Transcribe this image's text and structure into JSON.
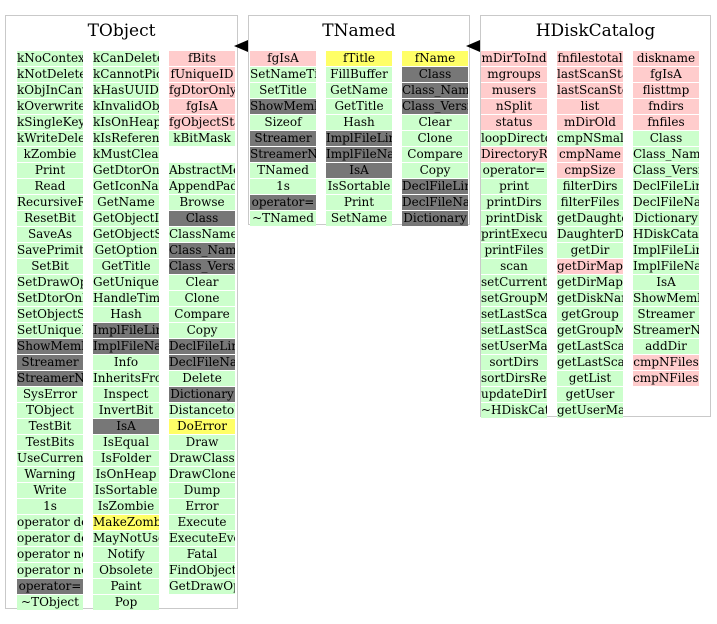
{
  "colors": {
    "method": "#ccffcc",
    "data_member": "#ffcccc",
    "highlight": "#ffff66",
    "overridden": "#777777",
    "border": "#c9c9c9"
  },
  "classes": [
    {
      "name": "TObject",
      "columns": [
        [
          {
            "t": "kNoContextMenu",
            "s": "m"
          },
          {
            "t": "kNotDeleted",
            "s": "m"
          },
          {
            "t": "kObjInCanvas",
            "s": "m"
          },
          {
            "t": "kOverwrite",
            "s": "m"
          },
          {
            "t": "kSingleKey",
            "s": "m"
          },
          {
            "t": "kWriteDelete",
            "s": "m"
          },
          {
            "t": "kZombie",
            "s": "m"
          },
          {
            "t": "Print",
            "s": "m"
          },
          {
            "t": "Read",
            "s": "m"
          },
          {
            "t": "RecursiveRemove",
            "s": "m"
          },
          {
            "t": "ResetBit",
            "s": "m"
          },
          {
            "t": "SaveAs",
            "s": "m"
          },
          {
            "t": "SavePrimitive",
            "s": "m"
          },
          {
            "t": "SetBit",
            "s": "m"
          },
          {
            "t": "SetDrawOption",
            "s": "m"
          },
          {
            "t": "SetDtorOnly",
            "s": "m"
          },
          {
            "t": "SetObjectStat",
            "s": "m"
          },
          {
            "t": "SetUniqueID",
            "s": "m"
          },
          {
            "t": "ShowMembers",
            "s": "o"
          },
          {
            "t": "Streamer",
            "s": "o"
          },
          {
            "t": "StreamerNVirtual",
            "s": "o"
          },
          {
            "t": "SysError",
            "s": "m"
          },
          {
            "t": "TObject",
            "s": "m"
          },
          {
            "t": "TestBit",
            "s": "m"
          },
          {
            "t": "TestBits",
            "s": "m"
          },
          {
            "t": "UseCurrentStyle",
            "s": "m"
          },
          {
            "t": "Warning",
            "s": "m"
          },
          {
            "t": "Write",
            "s": "m"
          },
          {
            "t": "1s",
            "s": "m"
          },
          {
            "t": "operator delete",
            "s": "m"
          },
          {
            "t": "operator delete[]",
            "s": "m"
          },
          {
            "t": "operator new",
            "s": "m"
          },
          {
            "t": "operator new[]",
            "s": "m"
          },
          {
            "t": "operator=",
            "s": "o"
          },
          {
            "t": "~TObject",
            "s": "m"
          }
        ],
        [
          {
            "t": "kCanDelete",
            "s": "m"
          },
          {
            "t": "kCannotPick",
            "s": "m"
          },
          {
            "t": "kHasUUID",
            "s": "m"
          },
          {
            "t": "kInvalidObject",
            "s": "m"
          },
          {
            "t": "kIsOnHeap",
            "s": "m"
          },
          {
            "t": "kIsReferenced",
            "s": "m"
          },
          {
            "t": "kMustCleanup",
            "s": "m"
          },
          {
            "t": "GetDtorOnly",
            "s": "m"
          },
          {
            "t": "GetIconName",
            "s": "m"
          },
          {
            "t": "GetName",
            "s": "m"
          },
          {
            "t": "GetObjectInfo",
            "s": "m"
          },
          {
            "t": "GetObjectStat",
            "s": "m"
          },
          {
            "t": "GetOption",
            "s": "m"
          },
          {
            "t": "GetTitle",
            "s": "m"
          },
          {
            "t": "GetUniqueID",
            "s": "m"
          },
          {
            "t": "HandleTimer",
            "s": "m"
          },
          {
            "t": "Hash",
            "s": "m"
          },
          {
            "t": "ImplFileLine",
            "s": "o"
          },
          {
            "t": "ImplFileName",
            "s": "o"
          },
          {
            "t": "Info",
            "s": "m"
          },
          {
            "t": "InheritsFrom",
            "s": "m"
          },
          {
            "t": "Inspect",
            "s": "m"
          },
          {
            "t": "InvertBit",
            "s": "m"
          },
          {
            "t": "IsA",
            "s": "o"
          },
          {
            "t": "IsEqual",
            "s": "m"
          },
          {
            "t": "IsFolder",
            "s": "m"
          },
          {
            "t": "IsOnHeap",
            "s": "m"
          },
          {
            "t": "IsSortable",
            "s": "m"
          },
          {
            "t": "IsZombie",
            "s": "m"
          },
          {
            "t": "MakeZombie",
            "s": "h"
          },
          {
            "t": "MayNotUse",
            "s": "m"
          },
          {
            "t": "Notify",
            "s": "m"
          },
          {
            "t": "Obsolete",
            "s": "m"
          },
          {
            "t": "Paint",
            "s": "m"
          },
          {
            "t": "Pop",
            "s": "m"
          }
        ],
        [
          {
            "t": "fBits",
            "s": "d"
          },
          {
            "t": "fUniqueID",
            "s": "d"
          },
          {
            "t": "fgDtorOnly",
            "s": "d"
          },
          {
            "t": "fgIsA",
            "s": "d"
          },
          {
            "t": "fgObjectStat",
            "s": "d"
          },
          {
            "t": "kBitMask",
            "s": "m"
          },
          {
            "t": "",
            "s": "gap"
          },
          {
            "t": "AbstractMethod",
            "s": "m"
          },
          {
            "t": "AppendPad",
            "s": "m"
          },
          {
            "t": "Browse",
            "s": "m"
          },
          {
            "t": "Class",
            "s": "o"
          },
          {
            "t": "ClassName",
            "s": "m"
          },
          {
            "t": "Class_Name",
            "s": "o"
          },
          {
            "t": "Class_Version",
            "s": "o"
          },
          {
            "t": "Clear",
            "s": "m"
          },
          {
            "t": "Clone",
            "s": "m"
          },
          {
            "t": "Compare",
            "s": "m"
          },
          {
            "t": "Copy",
            "s": "m"
          },
          {
            "t": "DeclFileLine",
            "s": "o"
          },
          {
            "t": "DeclFileName",
            "s": "o"
          },
          {
            "t": "Delete",
            "s": "m"
          },
          {
            "t": "Dictionary",
            "s": "o"
          },
          {
            "t": "DistancetoPrimitive",
            "s": "m"
          },
          {
            "t": "DoError",
            "s": "h"
          },
          {
            "t": "Draw",
            "s": "m"
          },
          {
            "t": "DrawClass",
            "s": "m"
          },
          {
            "t": "DrawClone",
            "s": "m"
          },
          {
            "t": "Dump",
            "s": "m"
          },
          {
            "t": "Error",
            "s": "m"
          },
          {
            "t": "Execute",
            "s": "m"
          },
          {
            "t": "ExecuteEvent",
            "s": "m"
          },
          {
            "t": "Fatal",
            "s": "m"
          },
          {
            "t": "FindObject",
            "s": "m"
          },
          {
            "t": "GetDrawOption",
            "s": "m"
          }
        ]
      ]
    },
    {
      "name": "TNamed",
      "columns": [
        [
          {
            "t": "fgIsA",
            "s": "d"
          },
          {
            "t": "SetNameTitle",
            "s": "m"
          },
          {
            "t": "SetTitle",
            "s": "m"
          },
          {
            "t": "ShowMembers",
            "s": "o"
          },
          {
            "t": "Sizeof",
            "s": "m"
          },
          {
            "t": "Streamer",
            "s": "o"
          },
          {
            "t": "StreamerNVirtual",
            "s": "o"
          },
          {
            "t": "TNamed",
            "s": "m"
          },
          {
            "t": "1s",
            "s": "m"
          },
          {
            "t": "operator=",
            "s": "o"
          },
          {
            "t": "~TNamed",
            "s": "m"
          }
        ],
        [
          {
            "t": "fTitle",
            "s": "h"
          },
          {
            "t": "FillBuffer",
            "s": "m"
          },
          {
            "t": "GetName",
            "s": "m"
          },
          {
            "t": "GetTitle",
            "s": "m"
          },
          {
            "t": "Hash",
            "s": "m"
          },
          {
            "t": "ImplFileLine",
            "s": "o"
          },
          {
            "t": "ImplFileName",
            "s": "o"
          },
          {
            "t": "IsA",
            "s": "o"
          },
          {
            "t": "IsSortable",
            "s": "m"
          },
          {
            "t": "Print",
            "s": "m"
          },
          {
            "t": "SetName",
            "s": "m"
          }
        ],
        [
          {
            "t": "fName",
            "s": "h"
          },
          {
            "t": "Class",
            "s": "o"
          },
          {
            "t": "Class_Name",
            "s": "o"
          },
          {
            "t": "Class_Version",
            "s": "o"
          },
          {
            "t": "Clear",
            "s": "m"
          },
          {
            "t": "Clone",
            "s": "m"
          },
          {
            "t": "Compare",
            "s": "m"
          },
          {
            "t": "Copy",
            "s": "m"
          },
          {
            "t": "DeclFileLine",
            "s": "o"
          },
          {
            "t": "DeclFileName",
            "s": "o"
          },
          {
            "t": "Dictionary",
            "s": "o"
          }
        ]
      ]
    },
    {
      "name": "HDiskCatalog",
      "columns": [
        [
          {
            "t": "mDirToInd",
            "s": "d"
          },
          {
            "t": "mgroups",
            "s": "d"
          },
          {
            "t": "musers",
            "s": "d"
          },
          {
            "t": "nSplit",
            "s": "d"
          },
          {
            "t": "status",
            "s": "d"
          },
          {
            "t": "loopDirectory",
            "s": "m"
          },
          {
            "t": "DirectoryRecursive",
            "s": "d"
          },
          {
            "t": "operator=",
            "s": "m"
          },
          {
            "t": "print",
            "s": "m"
          },
          {
            "t": "printDirs",
            "s": "m"
          },
          {
            "t": "printDisk",
            "s": "m"
          },
          {
            "t": "printExecution",
            "s": "m"
          },
          {
            "t": "printFiles",
            "s": "m"
          },
          {
            "t": "scan",
            "s": "m"
          },
          {
            "t": "setCurrentCatalog",
            "s": "m"
          },
          {
            "t": "setGroupMap",
            "s": "m"
          },
          {
            "t": "setLastScanStart",
            "s": "m"
          },
          {
            "t": "setLastScanStop",
            "s": "m"
          },
          {
            "t": "setUserMap",
            "s": "m"
          },
          {
            "t": "sortDirs",
            "s": "m"
          },
          {
            "t": "sortDirsRecursive",
            "s": "m"
          },
          {
            "t": "updateDirIndices",
            "s": "m"
          },
          {
            "t": "~HDiskCatalog",
            "s": "m"
          }
        ],
        [
          {
            "t": "fnfilestotal",
            "s": "d"
          },
          {
            "t": "lastScanStart",
            "s": "d"
          },
          {
            "t": "lastScanStop",
            "s": "d"
          },
          {
            "t": "list",
            "s": "d"
          },
          {
            "t": "mDirOld",
            "s": "d"
          },
          {
            "t": "cmpNSmallFiles",
            "s": "m"
          },
          {
            "t": "cmpName",
            "s": "d"
          },
          {
            "t": "cmpSize",
            "s": "d"
          },
          {
            "t": "filterDirs",
            "s": "m"
          },
          {
            "t": "filterFiles",
            "s": "m"
          },
          {
            "t": "getDaughterDirs",
            "s": "m"
          },
          {
            "t": "DaughterDirsRecursive",
            "s": "m"
          },
          {
            "t": "getDir",
            "s": "m"
          },
          {
            "t": "getDirMap",
            "s": "d"
          },
          {
            "t": "getDirMapOld",
            "s": "m"
          },
          {
            "t": "getDiskName",
            "s": "m"
          },
          {
            "t": "getGroup",
            "s": "m"
          },
          {
            "t": "getGroupMap",
            "s": "m"
          },
          {
            "t": "getLastScanStart",
            "s": "m"
          },
          {
            "t": "getLastScanStop",
            "s": "m"
          },
          {
            "t": "getList",
            "s": "m"
          },
          {
            "t": "getUser",
            "s": "m"
          },
          {
            "t": "getUserMap",
            "s": "m"
          }
        ],
        [
          {
            "t": "diskname",
            "s": "d"
          },
          {
            "t": "fgIsA",
            "s": "d"
          },
          {
            "t": "flisttmp",
            "s": "d"
          },
          {
            "t": "fndirs",
            "s": "d"
          },
          {
            "t": "fnfiles",
            "s": "d"
          },
          {
            "t": "Class",
            "s": "m"
          },
          {
            "t": "Class_Name",
            "s": "m"
          },
          {
            "t": "Class_Version",
            "s": "m"
          },
          {
            "t": "DeclFileLine",
            "s": "m"
          },
          {
            "t": "DeclFileName",
            "s": "m"
          },
          {
            "t": "Dictionary",
            "s": "m"
          },
          {
            "t": "HDiskCatalog",
            "s": "m"
          },
          {
            "t": "ImplFileLine",
            "s": "m"
          },
          {
            "t": "ImplFileName",
            "s": "m"
          },
          {
            "t": "IsA",
            "s": "m"
          },
          {
            "t": "ShowMembers",
            "s": "m"
          },
          {
            "t": "Streamer",
            "s": "m"
          },
          {
            "t": "StreamerNVirtual",
            "s": "m"
          },
          {
            "t": "addDir",
            "s": "m"
          },
          {
            "t": "cmpNFiles",
            "s": "d"
          },
          {
            "t": "cmpNFilesRatio",
            "s": "d"
          }
        ]
      ]
    }
  ]
}
